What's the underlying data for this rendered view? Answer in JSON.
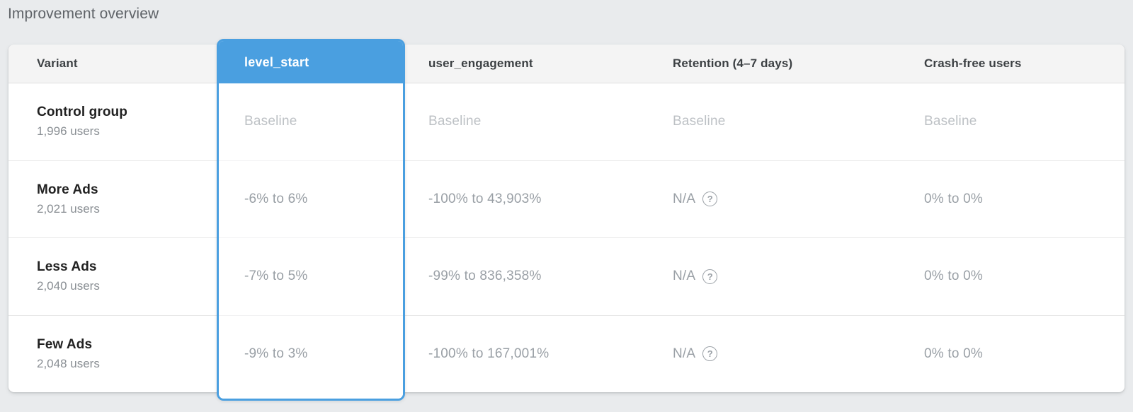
{
  "page": {
    "title": "Improvement overview"
  },
  "colors": {
    "accent": "#4a9fe0",
    "page_bg": "#e9ebed",
    "card_bg": "#ffffff",
    "header_bg": "#f4f4f4",
    "header_text": "#3c4043",
    "divider": "#e7e7e7",
    "variant_text": "#212121",
    "users_text": "#8a8f94",
    "value_text": "#9aa0a6",
    "baseline_text": "#bdc1c5",
    "selected_header_text": "#ffffff"
  },
  "icons": {
    "help_glyph": "?"
  },
  "table": {
    "columns": [
      {
        "label": "Variant",
        "selected": false
      },
      {
        "label": "level_start",
        "selected": true
      },
      {
        "label": "user_engagement",
        "selected": false
      },
      {
        "label": "Retention (4–7 days)",
        "selected": false
      },
      {
        "label": "Crash-free users",
        "selected": false
      }
    ],
    "rows": [
      {
        "variant": "Control group",
        "users": "1,996 users",
        "level_start": "Baseline",
        "user_engagement": "Baseline",
        "retention": "Baseline",
        "crash_free": "Baseline"
      },
      {
        "variant": "More Ads",
        "users": "2,021 users",
        "level_start": "-6% to 6%",
        "user_engagement": "-100% to 43,903%",
        "retention": "N/A",
        "crash_free": "0% to 0%"
      },
      {
        "variant": "Less Ads",
        "users": "2,040 users",
        "level_start": "-7% to 5%",
        "user_engagement": "-99% to 836,358%",
        "retention": "N/A",
        "crash_free": "0% to 0%"
      },
      {
        "variant": "Few Ads",
        "users": "2,048 users",
        "level_start": "-9% to 3%",
        "user_engagement": "-100% to 167,001%",
        "retention": "N/A",
        "crash_free": "0% to 0%"
      }
    ]
  }
}
